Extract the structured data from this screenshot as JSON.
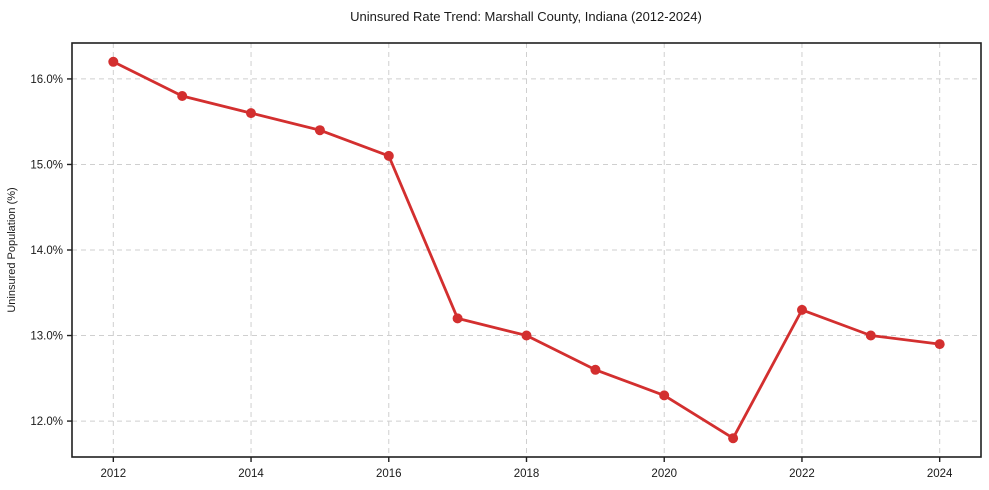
{
  "chart_data": {
    "type": "line",
    "title": "Uninsured Rate Trend: Marshall County, Indiana (2012-2024)",
    "xlabel": "",
    "ylabel": "Uninsured Population (%)",
    "series_name": "Uninsured rate",
    "x": [
      2012,
      2013,
      2014,
      2015,
      2016,
      2017,
      2018,
      2019,
      2020,
      2021,
      2022,
      2023,
      2024
    ],
    "values": [
      16.2,
      15.8,
      15.6,
      15.4,
      15.1,
      13.2,
      13.0,
      12.6,
      12.3,
      11.8,
      13.3,
      13.0,
      12.9
    ],
    "xlim": [
      2011.4,
      2024.6
    ],
    "ylim": [
      11.58,
      16.42
    ],
    "x_ticks": [
      2012,
      2014,
      2016,
      2018,
      2020,
      2022,
      2024
    ],
    "x_tick_labels": [
      "2012",
      "2014",
      "2016",
      "2018",
      "2020",
      "2022",
      "2024"
    ],
    "y_ticks": [
      12.0,
      13.0,
      14.0,
      15.0,
      16.0
    ],
    "y_tick_labels": [
      "12.0%",
      "13.0%",
      "14.0%",
      "15.0%",
      "16.0%"
    ],
    "grid": true,
    "grid_style": "dashed",
    "legend": "none",
    "colors": {
      "line": "#d32f2f",
      "marker": "#d32f2f",
      "grid": "#cfcfcf",
      "spine": "#1f1f1f",
      "text": "#1a1a1a",
      "background": "#ffffff"
    },
    "marker": "circle",
    "marker_radius": 5,
    "line_width": 2.8
  }
}
